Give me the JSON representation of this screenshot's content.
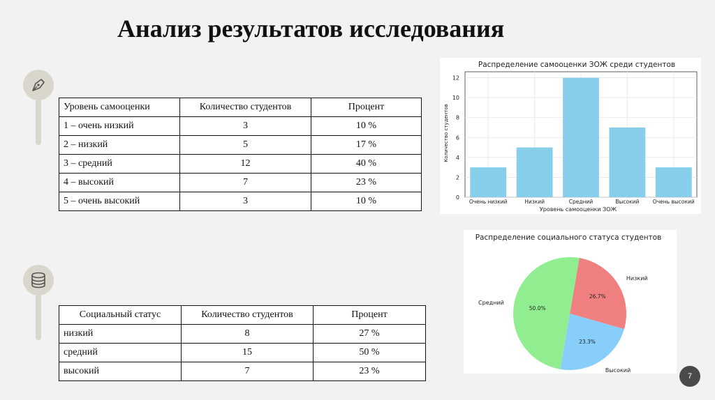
{
  "title": "Анализ результатов исследования",
  "page_number": "7",
  "icons": [
    "pen-nib-icon",
    "database-icon"
  ],
  "table_self_esteem": {
    "headers": [
      "Уровень самооценки",
      "Количество студентов",
      "Процент"
    ],
    "rows": [
      [
        "1 – очень низкий",
        "3",
        "10 %"
      ],
      [
        "2 – низкий",
        "5",
        "17 %"
      ],
      [
        "3 – средний",
        "12",
        "40 %"
      ],
      [
        "4 – высокий",
        "7",
        "23 %"
      ],
      [
        "5 – очень высокий",
        "3",
        "10 %"
      ]
    ]
  },
  "table_social": {
    "headers": [
      "Социальный статус",
      "Количество студентов",
      "Процент"
    ],
    "rows": [
      [
        "низкий",
        "8",
        "27 %"
      ],
      [
        "средний",
        "15",
        "50 %"
      ],
      [
        "высокий",
        "7",
        "23 %"
      ]
    ]
  },
  "chart_data": [
    {
      "type": "bar",
      "title": "Распределение самооценки ЗОЖ среди студентов",
      "xlabel": "Уровень самооценки ЗОЖ",
      "ylabel": "Количество студентов",
      "categories": [
        "Очень низкий",
        "Низкий",
        "Средний",
        "Высокий",
        "Очень высокий"
      ],
      "values": [
        3,
        5,
        12,
        7,
        3
      ],
      "ylim": [
        0,
        12.6
      ],
      "yticks": [
        0,
        2,
        4,
        6,
        8,
        10,
        12
      ],
      "grid": true,
      "bar_color": "#87ceeb"
    },
    {
      "type": "pie",
      "title": "Распределение социального статуса студентов",
      "labels": [
        "Низкий",
        "Высокий",
        "Средний"
      ],
      "values": [
        26.7,
        23.3,
        50.0
      ],
      "value_labels": [
        "26.7%",
        "23.3%",
        "50.0%"
      ],
      "colors": [
        "#f08080",
        "#87cefa",
        "#90ee90"
      ]
    }
  ]
}
